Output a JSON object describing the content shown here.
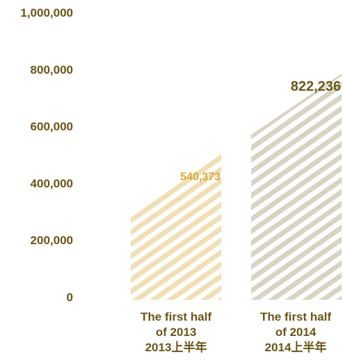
{
  "chart_data": {
    "type": "bar",
    "categories": [
      {
        "en_line1": "The first half",
        "en_line2": "of 2013",
        "zh": "2013上半年"
      },
      {
        "en_line1": "The first half",
        "en_line2": "of 2014",
        "zh": "2014上半年"
      }
    ],
    "values": [
      540373,
      822236
    ],
    "value_labels": [
      "540,373",
      "822,236"
    ],
    "ylim": [
      0,
      1000000
    ],
    "yticks": [
      0,
      200000,
      400000,
      600000,
      800000,
      1000000
    ],
    "ytick_labels": [
      "0",
      "200,000",
      "400,000",
      "600,000",
      "800,000",
      "1,000,000"
    ],
    "bar_colors": [
      "#efdfb2",
      "#d8d3c3"
    ],
    "value_label_colors": [
      "#d9a83a",
      "#6b5416"
    ],
    "style": "diagonal-hatched bars with slanted tops",
    "grid": false,
    "legend": "none"
  }
}
